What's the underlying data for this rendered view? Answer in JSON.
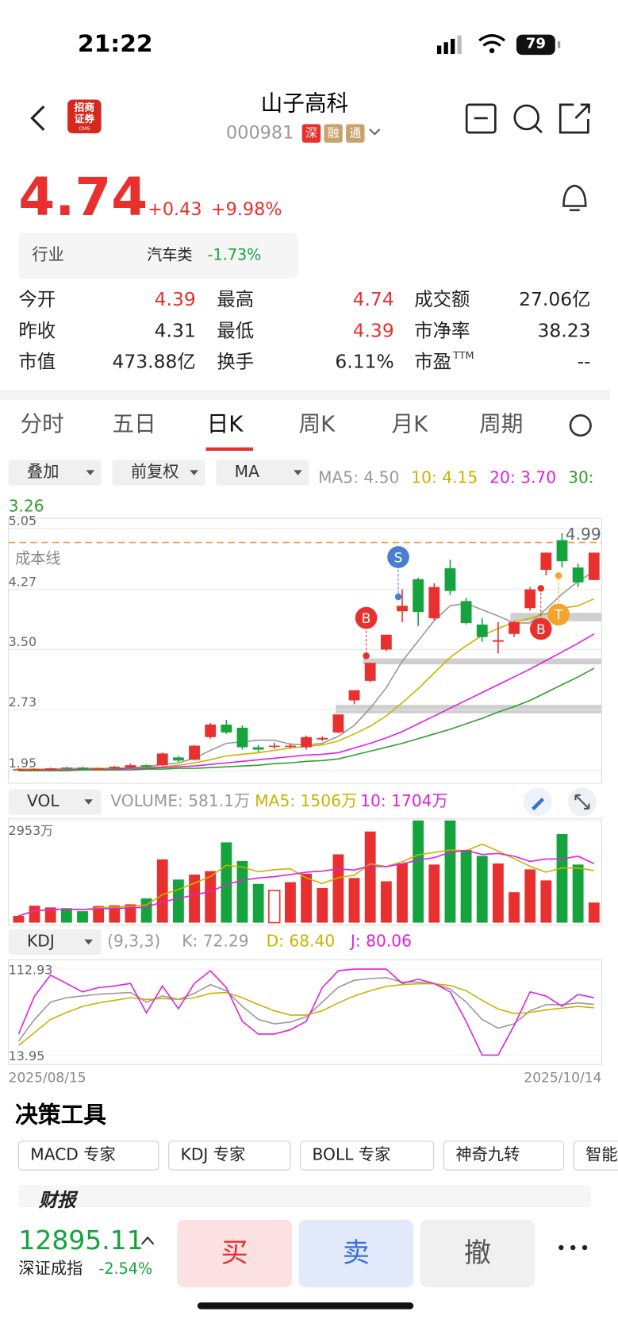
{
  "status": {
    "time": "21:22",
    "battery": "79"
  },
  "header": {
    "title": "山子高科",
    "code": "000981",
    "badges": [
      {
        "text": "深",
        "color": "#e8312f"
      },
      {
        "text": "融",
        "color": "#c7a36b"
      },
      {
        "text": "通",
        "color": "#c7a36b"
      }
    ],
    "logo": [
      "招商",
      "证券",
      "CMS"
    ]
  },
  "quote": {
    "price": "4.74",
    "change": "+0.43",
    "change_pct": "+9.98%"
  },
  "industry": {
    "label": "行业",
    "name": "汽车类",
    "change": "-1.73%"
  },
  "stats": [
    {
      "label": "今开",
      "value": "4.39",
      "color": "#e8312f"
    },
    {
      "label": "最高",
      "value": "4.74",
      "color": "#e8312f"
    },
    {
      "label": "成交额",
      "value": "27.06亿",
      "color": "#222"
    },
    {
      "label": "昨收",
      "value": "4.31",
      "color": "#222"
    },
    {
      "label": "最低",
      "value": "4.39",
      "color": "#e8312f"
    },
    {
      "label": "市净率",
      "value": "38.23",
      "color": "#222"
    },
    {
      "label": "市值",
      "value": "473.88亿",
      "color": "#222"
    },
    {
      "label": "换手",
      "value": "6.11%",
      "color": "#222"
    },
    {
      "label": "市盈",
      "sup": "TTM",
      "value": "--",
      "color": "#222"
    }
  ],
  "tabs": [
    "分时",
    "五日",
    "日K",
    "周K",
    "月K",
    "周期"
  ],
  "active_tab": 2,
  "controls": [
    "叠加",
    "前复权",
    "MA"
  ],
  "ma_legend": [
    {
      "text": "MA5: 4.50",
      "color": "#999999"
    },
    {
      "text": "10: 4.15",
      "color": "#c8b400"
    },
    {
      "text": "20: 3.70",
      "color": "#e020e0"
    },
    {
      "text": "30: 3.26",
      "color": "#2ea02e"
    }
  ],
  "kline": {
    "ylim": [
      1.95,
      5.05
    ],
    "yticks": [
      5.05,
      4.27,
      {
        "value": 3.5,
        "label": "3.50"
      },
      2.73,
      1.95
    ],
    "grid": true,
    "up_color": "#e8312f",
    "down_color": "#14a33c",
    "cost_line": 4.87,
    "cost_label": "成本线",
    "high_label": 4.99,
    "markers": [
      "S",
      "B",
      "B",
      "T"
    ],
    "candles": [
      {
        "open": 1.96,
        "close": 1.97,
        "high": 1.98,
        "low": 1.95
      },
      {
        "open": 1.96,
        "close": 1.97,
        "high": 1.98,
        "low": 1.96
      },
      {
        "open": 1.97,
        "close": 1.98,
        "high": 1.99,
        "low": 1.96
      },
      {
        "open": 1.99,
        "close": 1.98,
        "high": 2.0,
        "low": 1.97
      },
      {
        "open": 1.99,
        "close": 1.98,
        "high": 2.0,
        "low": 1.97
      },
      {
        "open": 1.97,
        "close": 1.98,
        "high": 1.99,
        "low": 1.96
      },
      {
        "open": 1.98,
        "close": 2.0,
        "high": 2.01,
        "low": 1.97
      },
      {
        "open": 1.99,
        "close": 2.02,
        "high": 2.04,
        "low": 1.98
      },
      {
        "open": 2.02,
        "close": 2.0,
        "high": 2.03,
        "low": 1.99
      },
      {
        "open": 2.02,
        "close": 2.17,
        "high": 2.18,
        "low": 2.01
      },
      {
        "open": 2.12,
        "close": 2.08,
        "high": 2.14,
        "low": 2.06
      },
      {
        "open": 2.09,
        "close": 2.27,
        "high": 2.28,
        "low": 2.08
      },
      {
        "open": 2.38,
        "close": 2.54,
        "high": 2.56,
        "low": 2.36
      },
      {
        "open": 2.54,
        "close": 2.44,
        "high": 2.6,
        "low": 2.42
      },
      {
        "open": 2.5,
        "close": 2.25,
        "high": 2.53,
        "low": 2.22
      },
      {
        "open": 2.25,
        "close": 2.22,
        "high": 2.28,
        "low": 2.19
      },
      {
        "open": 2.27,
        "close": 2.27,
        "high": 2.31,
        "low": 2.23
      },
      {
        "open": 2.26,
        "close": 2.27,
        "high": 2.3,
        "low": 2.24
      },
      {
        "open": 2.25,
        "close": 2.38,
        "high": 2.4,
        "low": 2.22
      },
      {
        "open": 2.35,
        "close": 2.37,
        "high": 2.39,
        "low": 2.33
      },
      {
        "open": 2.44,
        "close": 2.67,
        "high": 2.67,
        "low": 2.43
      },
      {
        "open": 2.85,
        "close": 2.98,
        "high": 2.98,
        "low": 2.8
      },
      {
        "open": 3.1,
        "close": 3.33,
        "high": 3.33,
        "low": 3.08
      },
      {
        "open": 3.5,
        "close": 3.69,
        "high": 3.69,
        "low": 3.48
      },
      {
        "open": 3.99,
        "close": 4.06,
        "high": 4.27,
        "low": 3.85
      },
      {
        "open": 4.4,
        "close": 3.98,
        "high": 4.42,
        "low": 3.8
      },
      {
        "open": 3.9,
        "close": 4.3,
        "high": 4.35,
        "low": 3.88
      },
      {
        "open": 4.54,
        "close": 4.25,
        "high": 4.65,
        "low": 4.2
      },
      {
        "open": 4.12,
        "close": 3.84,
        "high": 4.16,
        "low": 3.82
      },
      {
        "open": 3.82,
        "close": 3.66,
        "high": 3.9,
        "low": 3.6
      },
      {
        "open": 3.6,
        "close": 3.62,
        "high": 3.85,
        "low": 3.45
      },
      {
        "open": 3.7,
        "close": 3.85,
        "high": 3.87,
        "low": 3.66
      },
      {
        "open": 4.03,
        "close": 4.27,
        "high": 4.3,
        "low": 4.0
      },
      {
        "open": 4.52,
        "close": 4.74,
        "high": 4.74,
        "low": 4.45
      },
      {
        "open": 4.9,
        "close": 4.63,
        "high": 4.99,
        "low": 4.55
      },
      {
        "open": 4.55,
        "close": 4.36,
        "high": 4.6,
        "low": 4.3
      },
      {
        "open": 4.39,
        "close": 4.74,
        "high": 4.74,
        "low": 4.39
      }
    ],
    "ma5": [
      1.97,
      1.97,
      1.97,
      1.98,
      1.98,
      1.98,
      1.98,
      1.99,
      2.0,
      2.03,
      2.05,
      2.11,
      2.21,
      2.3,
      2.32,
      2.34,
      2.34,
      2.29,
      2.28,
      2.3,
      2.39,
      2.53,
      2.75,
      3.01,
      3.35,
      3.61,
      3.87,
      4.06,
      4.09,
      4.01,
      3.93,
      3.84,
      3.84,
      4.02,
      4.21,
      4.37,
      4.5
    ],
    "ma10": [
      1.97,
      1.97,
      1.97,
      1.97,
      1.98,
      1.98,
      1.98,
      1.98,
      1.99,
      2.0,
      2.02,
      2.05,
      2.09,
      2.14,
      2.16,
      2.18,
      2.21,
      2.24,
      2.26,
      2.28,
      2.33,
      2.42,
      2.52,
      2.65,
      2.82,
      3.0,
      3.2,
      3.4,
      3.55,
      3.68,
      3.77,
      3.85,
      3.9,
      3.96,
      4.03,
      4.06,
      4.15
    ],
    "ma20": [
      1.96,
      1.96,
      1.96,
      1.96,
      1.97,
      1.97,
      1.97,
      1.98,
      1.98,
      1.99,
      2.0,
      2.01,
      2.03,
      2.05,
      2.07,
      2.09,
      2.11,
      2.13,
      2.15,
      2.16,
      2.18,
      2.24,
      2.3,
      2.37,
      2.45,
      2.55,
      2.65,
      2.75,
      2.85,
      2.95,
      3.05,
      3.15,
      3.25,
      3.36,
      3.47,
      3.58,
      3.7
    ],
    "ma30": [
      1.95,
      1.95,
      1.95,
      1.95,
      1.96,
      1.96,
      1.96,
      1.96,
      1.97,
      1.97,
      1.98,
      1.98,
      1.99,
      2.0,
      2.01,
      2.02,
      2.04,
      2.05,
      2.07,
      2.08,
      2.1,
      2.15,
      2.2,
      2.25,
      2.3,
      2.36,
      2.42,
      2.48,
      2.55,
      2.62,
      2.7,
      2.77,
      2.85,
      2.95,
      3.05,
      3.15,
      3.26
    ],
    "x_labels": [
      "2025/08/15",
      "2025/10/14"
    ]
  },
  "vol_panel": {
    "selector": "VOL",
    "legend": [
      {
        "text": "VOLUME: 581.1万",
        "color": "#999999"
      },
      {
        "text": "MA5: 1506万",
        "color": "#c8b400"
      },
      {
        "text": "10: 1704万",
        "color": "#e020e0"
      }
    ],
    "ylim": [
      0,
      2953
    ],
    "yticks": [
      {
        "value": 2953,
        "label": "2953万"
      }
    ],
    "values": [
      195,
      490,
      440,
      420,
      330,
      480,
      500,
      530,
      700,
      1830,
      1245,
      1390,
      1490,
      2320,
      1780,
      1120,
      930,
      1170,
      1415,
      1000,
      1975,
      1290,
      2635,
      1195,
      1710,
      2953,
      1680,
      2953,
      2100,
      1930,
      1710,
      880,
      1540,
      1220,
      2560,
      1680,
      581.1
    ],
    "ma5": [
      195,
      340,
      375,
      390,
      375,
      430,
      450,
      470,
      510,
      810,
      960,
      1140,
      1330,
      1660,
      1610,
      1470,
      1530,
      1560,
      1290,
      1130,
      1300,
      1370,
      1700,
      1620,
      1760,
      1960,
      2030,
      2100,
      2080,
      2270,
      2070,
      1850,
      1630,
      1460,
      1580,
      1580,
      1506
    ],
    "ma10": [
      195,
      340,
      375,
      390,
      375,
      400,
      410,
      420,
      450,
      600,
      700,
      800,
      900,
      1100,
      1230,
      1290,
      1330,
      1390,
      1460,
      1490,
      1550,
      1520,
      1640,
      1620,
      1700,
      1810,
      1880,
      2030,
      2090,
      1970,
      2000,
      1920,
      1770,
      1840,
      1840,
      1920,
      1704
    ]
  },
  "kdj_panel": {
    "selector": "KDJ",
    "legend": [
      {
        "text": "(9,3,3)",
        "color": "#999999"
      },
      {
        "text": "K: 72.29",
        "color": "#999999"
      },
      {
        "text": "D: 68.40",
        "color": "#c8b400"
      },
      {
        "text": "J: 80.06",
        "color": "#e020e0"
      }
    ],
    "ylim": [
      13.95,
      112.93
    ],
    "yticks": [
      112.93,
      13.95
    ],
    "k": [
      30,
      55,
      75,
      80,
      82,
      84,
      85,
      86,
      75,
      82,
      78,
      85,
      95,
      88,
      70,
      55,
      50,
      52,
      58,
      75,
      92,
      100,
      102,
      103,
      98,
      98,
      96,
      90,
      75,
      55,
      45,
      50,
      65,
      72,
      72,
      74,
      72.29
    ],
    "d": [
      25,
      40,
      55,
      63,
      70,
      74,
      77,
      80,
      78,
      79,
      78,
      80,
      85,
      86,
      80,
      72,
      65,
      60,
      60,
      65,
      74,
      82,
      88,
      93,
      95,
      96,
      96,
      94,
      88,
      77,
      67,
      62,
      63,
      66,
      68,
      70,
      68.4
    ],
    "j": [
      38.2,
      81.9,
      106,
      96.4,
      86.7,
      91.6,
      93.5,
      96.4,
      62.5,
      93.5,
      67.3,
      96.4,
      111,
      91.6,
      52.8,
      38.2,
      38.2,
      43.1,
      52.8,
      91.6,
      111,
      112.9,
      112.9,
      112.9,
      96.4,
      101.3,
      96.4,
      86.7,
      52.8,
      14,
      14,
      48,
      86.7,
      81.9,
      70.2,
      83.8,
      80.06
    ]
  },
  "tools": {
    "title": "决策工具",
    "items": [
      "MACD 专家",
      "KDJ 专家",
      "BOLL 专家",
      "神奇九转",
      "智能"
    ]
  },
  "news": {
    "tag": "财报"
  },
  "footer": {
    "index_value": "12895.11",
    "index_name": "深证成指",
    "index_change": "-2.54%",
    "buttons": [
      "买",
      "卖",
      "撤"
    ]
  }
}
